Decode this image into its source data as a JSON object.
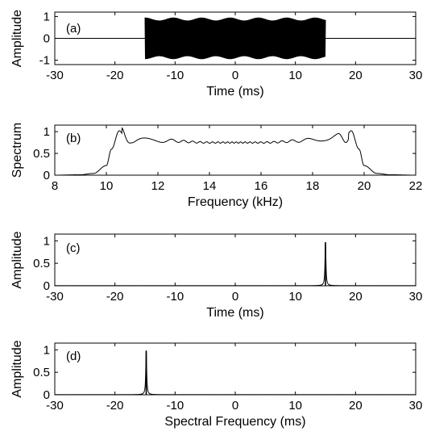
{
  "chart_data": [
    {
      "type": "line",
      "tag": "(a)",
      "xlabel": "Time (ms)",
      "ylabel": "Amplitude",
      "xlim": [
        -30,
        30
      ],
      "ylim": [
        -1.2,
        1.2
      ],
      "xticks": [
        -30,
        -20,
        -10,
        0,
        10,
        20,
        30
      ],
      "xtick_labels": [
        "-30",
        "-20",
        "-10",
        "0",
        "10",
        "20",
        "30"
      ],
      "yticks": [
        -1,
        0,
        1
      ],
      "ytick_labels": [
        "-1",
        "0",
        "1"
      ],
      "series": [
        {
          "kind": "chirp_burst",
          "x_start": -15,
          "x_end": 15,
          "amplitude": 0.95,
          "baseline": 0
        }
      ],
      "grid": false,
      "color": "#000000"
    },
    {
      "type": "line",
      "tag": "(b)",
      "xlabel": "Frequency (kHz)",
      "ylabel": "Spectrum",
      "xlim": [
        8,
        22
      ],
      "ylim": [
        0,
        1.15
      ],
      "xticks": [
        8,
        10,
        12,
        14,
        16,
        18,
        20,
        22
      ],
      "xtick_labels": [
        "8",
        "10",
        "12",
        "14",
        "16",
        "18",
        "20",
        "22"
      ],
      "yticks": [
        0,
        0.5,
        1
      ],
      "ytick_labels": [
        "0",
        "0.5",
        "1"
      ],
      "series": [
        {
          "kind": "flat_spectrum",
          "x": [
            8,
            9,
            9.5,
            10,
            10.2,
            10.5,
            10.8,
            11,
            12,
            14,
            16,
            18,
            19,
            19.2,
            19.5,
            19.8,
            20,
            20.5,
            21,
            22
          ],
          "y": [
            0,
            0.01,
            0.04,
            0.22,
            0.6,
            1.02,
            0.8,
            0.85,
            0.8,
            0.75,
            0.75,
            0.8,
            0.85,
            0.8,
            1.02,
            0.6,
            0.22,
            0.04,
            0.01,
            0
          ]
        }
      ],
      "grid": false,
      "color": "#000000"
    },
    {
      "type": "line",
      "tag": "(c)",
      "xlabel": "Time (ms)",
      "ylabel": "Amplitude",
      "xlim": [
        -30,
        30
      ],
      "ylim": [
        0,
        1.15
      ],
      "xticks": [
        -30,
        -20,
        -10,
        0,
        10,
        20,
        30
      ],
      "xtick_labels": [
        "-30",
        "-20",
        "-10",
        "0",
        "10",
        "20",
        "30"
      ],
      "yticks": [
        0,
        0.5,
        1
      ],
      "ytick_labels": [
        "0",
        "0.5",
        "1"
      ],
      "series": [
        {
          "kind": "peak",
          "x_peak": 15,
          "y_peak": 0.97
        }
      ],
      "grid": false,
      "color": "#000000"
    },
    {
      "type": "line",
      "tag": "(d)",
      "xlabel": "Spectral Frequency (ms)",
      "ylabel": "Amplitude",
      "xlim": [
        -30,
        30
      ],
      "ylim": [
        0,
        1.15
      ],
      "xticks": [
        -30,
        -20,
        -10,
        0,
        10,
        20,
        30
      ],
      "xtick_labels": [
        "-30",
        "-20",
        "-10",
        "0",
        "10",
        "20",
        "30"
      ],
      "yticks": [
        0,
        0.5,
        1
      ],
      "ytick_labels": [
        "0",
        "0.5",
        "1"
      ],
      "series": [
        {
          "kind": "peak",
          "x_peak": -14.8,
          "y_peak": 0.98
        }
      ],
      "grid": false,
      "color": "#000000"
    }
  ]
}
